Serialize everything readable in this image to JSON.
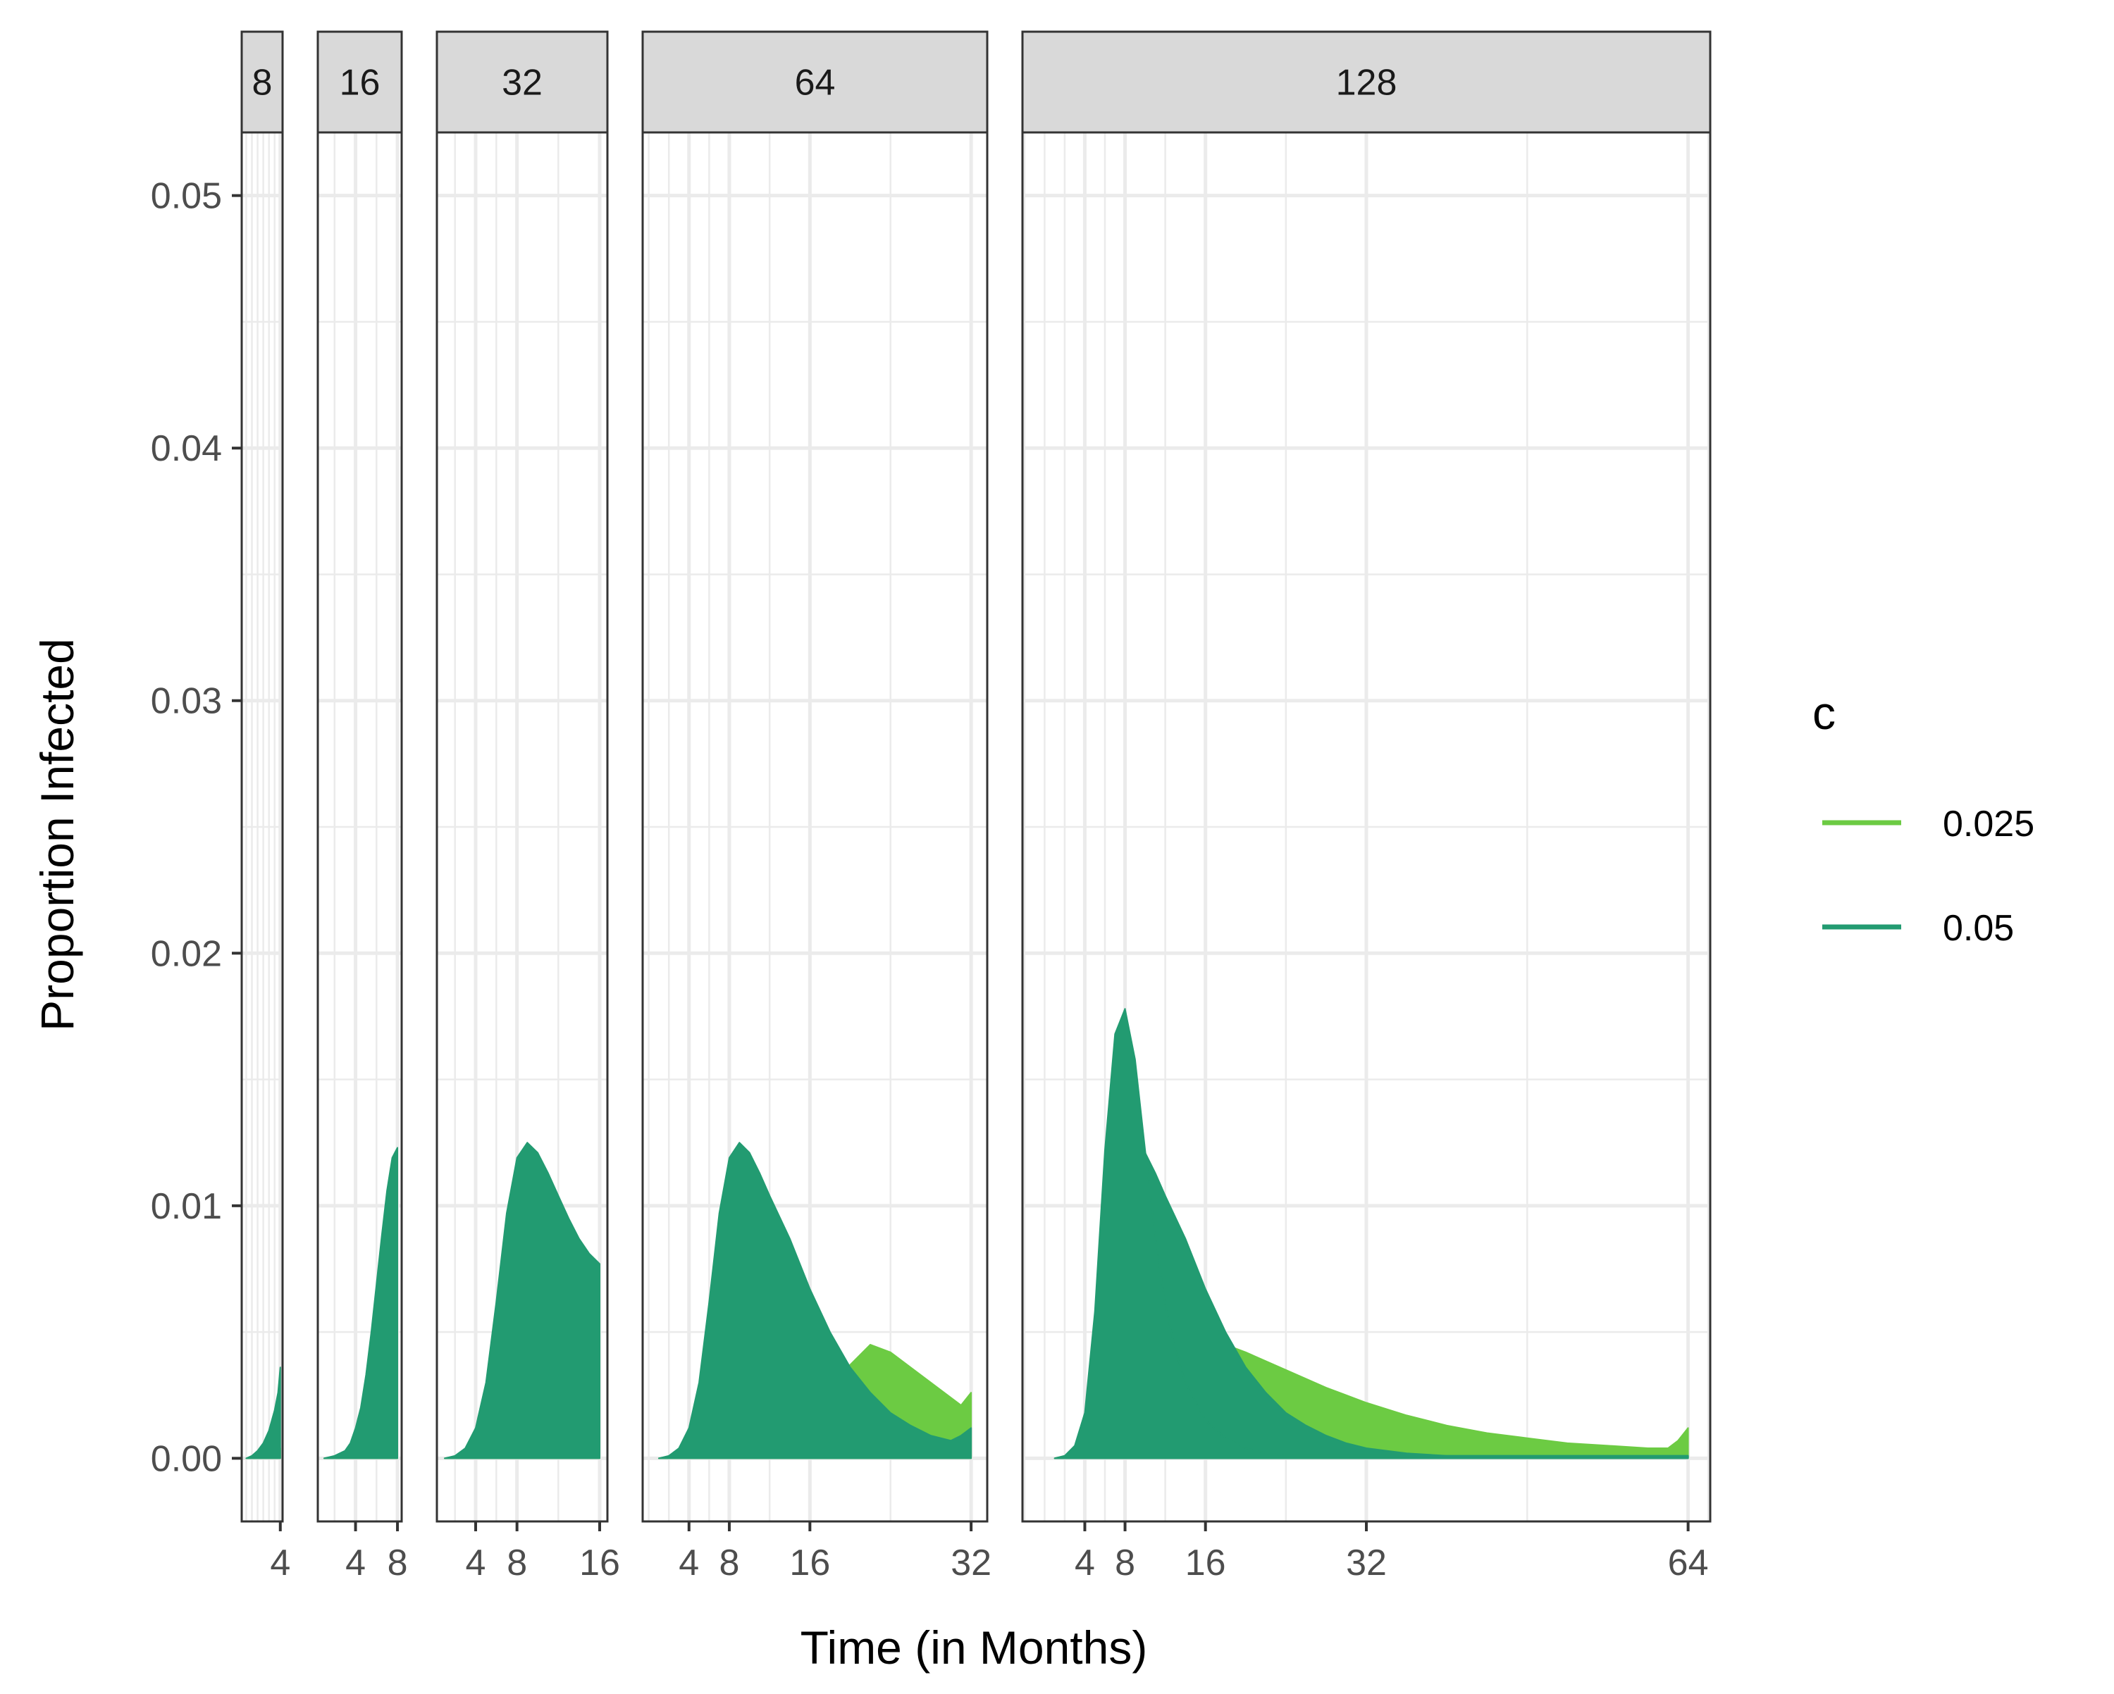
{
  "chart_data": {
    "type": "area",
    "xlabel": "Time (in Months)",
    "ylabel": "Proportion Infected",
    "ylim": [
      -0.0025,
      0.0525
    ],
    "yticks": [
      0.0,
      0.01,
      0.02,
      0.03,
      0.04,
      0.05
    ],
    "ytick_labels": [
      "0.00",
      "0.01",
      "0.02",
      "0.03",
      "0.04",
      "0.05"
    ],
    "grid": true,
    "legend": {
      "title": "c",
      "position": "right",
      "entries": [
        {
          "label": "0.025",
          "color": "#6CCB43"
        },
        {
          "label": "0.05",
          "color": "#229B71"
        }
      ]
    },
    "series_colors": {
      "0.025": "#6CCB43",
      "0.05": "#229B71"
    },
    "panels": [
      {
        "strip": "8",
        "xlim": [
          0.6,
          4.2
        ],
        "xticks": [
          4
        ],
        "xtick_labels": [
          "4"
        ],
        "series": [
          {
            "name": "0.025",
            "x": [
              1,
              2,
              3,
              3.5,
              4
            ],
            "y": [
              0,
              0.0001,
              0.0002,
              0.0003,
              0.0004
            ]
          },
          {
            "name": "0.05",
            "x": [
              1,
              1.5,
              2,
              2.5,
              3,
              3.5,
              3.8,
              4
            ],
            "y": [
              0,
              0.0001,
              0.0003,
              0.0006,
              0.0011,
              0.0019,
              0.0026,
              0.0036
            ]
          }
        ]
      },
      {
        "strip": "16",
        "xlim": [
          0.4,
          8.4
        ],
        "xticks": [
          4,
          8
        ],
        "xtick_labels": [
          "4",
          "8"
        ],
        "series": [
          {
            "name": "0.025",
            "x": [
              1,
              4,
              6,
              7,
              7.5,
              8
            ],
            "y": [
              0,
              0.0001,
              0.0003,
              0.0007,
              0.0011,
              0.0017
            ]
          },
          {
            "name": "0.05",
            "x": [
              1,
              2,
              3,
              3.5,
              4,
              4.5,
              5,
              5.5,
              6,
              6.5,
              7,
              7.5,
              8
            ],
            "y": [
              0,
              0.0001,
              0.0003,
              0.0006,
              0.0012,
              0.002,
              0.0033,
              0.005,
              0.0069,
              0.0088,
              0.0106,
              0.0119,
              0.0123
            ]
          }
        ]
      },
      {
        "strip": "32",
        "xlim": [
          0.25,
          16.75
        ],
        "xticks": [
          4,
          8,
          16
        ],
        "xtick_labels": [
          "4",
          "8",
          "16"
        ],
        "series": [
          {
            "name": "0.025",
            "x": [
              1,
              8,
              12,
              14,
              15,
              15.5,
              16
            ],
            "y": [
              0,
              0.0001,
              0.0002,
              0.0006,
              0.0011,
              0.0017,
              0.0028
            ]
          },
          {
            "name": "0.05",
            "x": [
              1,
              2,
              3,
              4,
              5,
              6,
              7,
              8,
              9,
              10,
              11,
              12,
              13,
              14,
              15,
              16
            ],
            "y": [
              0,
              0.0001,
              0.0004,
              0.0012,
              0.003,
              0.0062,
              0.0097,
              0.0119,
              0.0125,
              0.0121,
              0.0113,
              0.0104,
              0.0095,
              0.0087,
              0.0081,
              0.0077
            ]
          }
        ]
      },
      {
        "strip": "64",
        "xlim": [
          -0.6,
          33.6
        ],
        "xticks": [
          4,
          8,
          16,
          32
        ],
        "xtick_labels": [
          "4",
          "8",
          "16",
          "32"
        ],
        "series": [
          {
            "name": "0.025",
            "x": [
              1,
              8,
              16,
              19,
              22,
              24,
              26,
              28,
              30,
              31,
              32
            ],
            "y": [
              0,
              0.0001,
              0.0012,
              0.0033,
              0.0045,
              0.0042,
              0.0036,
              0.003,
              0.0024,
              0.0021,
              0.0026
            ]
          },
          {
            "name": "0.05",
            "x": [
              1,
              2,
              3,
              4,
              5,
              6,
              7,
              8,
              9,
              10,
              11,
              12,
              14,
              16,
              18,
              20,
              22,
              24,
              26,
              28,
              30,
              31,
              32
            ],
            "y": [
              0,
              0.0001,
              0.0004,
              0.0012,
              0.003,
              0.0062,
              0.0097,
              0.0119,
              0.0125,
              0.0121,
              0.0113,
              0.0104,
              0.0087,
              0.0067,
              0.005,
              0.0036,
              0.0026,
              0.0018,
              0.0013,
              0.0009,
              0.0007,
              0.0009,
              0.0012
            ]
          }
        ]
      },
      {
        "strip": "128",
        "xlim": [
          -2.2,
          66.2
        ],
        "xticks": [
          4,
          8,
          16,
          32,
          64
        ],
        "xtick_labels": [
          "4",
          "8",
          "16",
          "32",
          "64"
        ],
        "series": [
          {
            "name": "0.025",
            "x": [
              1,
              2,
              3,
              4,
              5,
              6,
              7,
              8,
              9,
              10,
              11,
              12,
              14,
              16,
              20,
              24,
              28,
              32,
              36,
              40,
              44,
              48,
              52,
              56,
              60,
              62,
              63,
              64
            ],
            "y": [
              0,
              0.0001,
              0.0003,
              0.0007,
              0.0016,
              0.0035,
              0.0057,
              0.0068,
              0.0071,
              0.007,
              0.0066,
              0.0061,
              0.0054,
              0.0048,
              0.0042,
              0.0035,
              0.0028,
              0.0022,
              0.0017,
              0.0013,
              0.001,
              0.0008,
              0.0006,
              0.0005,
              0.0004,
              0.0004,
              0.0007,
              0.0012
            ]
          },
          {
            "name": "0.05",
            "x": [
              1,
              2,
              3,
              4,
              5,
              6,
              7,
              8,
              9,
              10,
              11,
              12,
              14,
              16,
              18,
              20,
              22,
              24,
              26,
              28,
              30,
              32,
              36,
              40,
              48,
              56,
              64
            ],
            "y": [
              0,
              0.0001,
              0.0004,
              0.0012,
              0.003,
              0.0062,
              0.0097,
              0.0119,
              0.0125,
              0.0121,
              0.0113,
              0.0104,
              0.0087,
              0.0067,
              0.005,
              0.0036,
              0.0026,
              0.0018,
              0.0013,
              0.0009,
              0.0006,
              0.0004,
              0.0002,
              0.0001,
              0.0001,
              0.0001,
              0.0001
            ]
          },
          {
            "name": "0.05",
            "x": [
              1,
              2,
              3,
              4,
              5,
              6,
              7,
              8,
              9,
              10,
              11,
              12,
              13,
              14,
              16,
              18,
              20,
              22,
              24,
              28,
              32,
              40,
              48,
              56,
              64
            ],
            "y": [
              0,
              0.0001,
              0.0005,
              0.0018,
              0.0058,
              0.0122,
              0.0168,
              0.0178,
              0.0158,
              0.0122,
              0.0088,
              0.0061,
              0.0043,
              0.003,
              0.0015,
              0.0008,
              0.0004,
              0.0002,
              0.0001,
              0.0001,
              0.0001,
              0.0001,
              0.0001,
              0.0001,
              0.0001
            ]
          }
        ]
      }
    ]
  }
}
